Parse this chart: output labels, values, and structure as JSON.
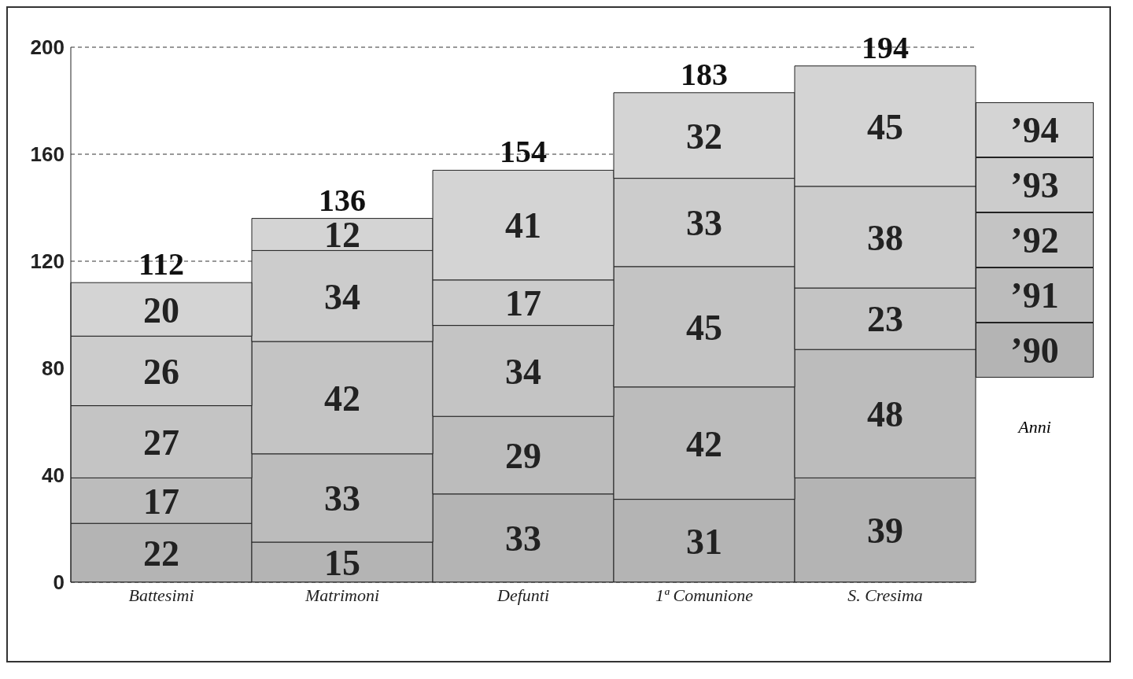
{
  "chart_data": {
    "type": "bar",
    "stacked": true,
    "categories": [
      "Battesimi",
      "Matrimoni",
      "Defunti",
      "1ª Comunione",
      "S. Cresima"
    ],
    "series": [
      {
        "name": "’90",
        "color": "#b4b4b4",
        "values": [
          22,
          15,
          33,
          31,
          39
        ]
      },
      {
        "name": "’91",
        "color": "#bcbcbc",
        "values": [
          17,
          33,
          29,
          42,
          48
        ]
      },
      {
        "name": "’92",
        "color": "#c4c4c4",
        "values": [
          27,
          42,
          34,
          45,
          23
        ]
      },
      {
        "name": "’93",
        "color": "#cccccc",
        "values": [
          26,
          34,
          17,
          33,
          38
        ]
      },
      {
        "name": "’94",
        "color": "#d4d4d4",
        "values": [
          20,
          12,
          41,
          32,
          45
        ]
      }
    ],
    "totals": [
      "112",
      "136",
      "154",
      "183",
      "194"
    ],
    "data_labels": true,
    "legend": "right",
    "legend_title": "Anni",
    "ylim": [
      0,
      200
    ],
    "yticks": [
      0,
      40,
      80,
      120,
      160,
      200
    ],
    "grid": "y"
  }
}
